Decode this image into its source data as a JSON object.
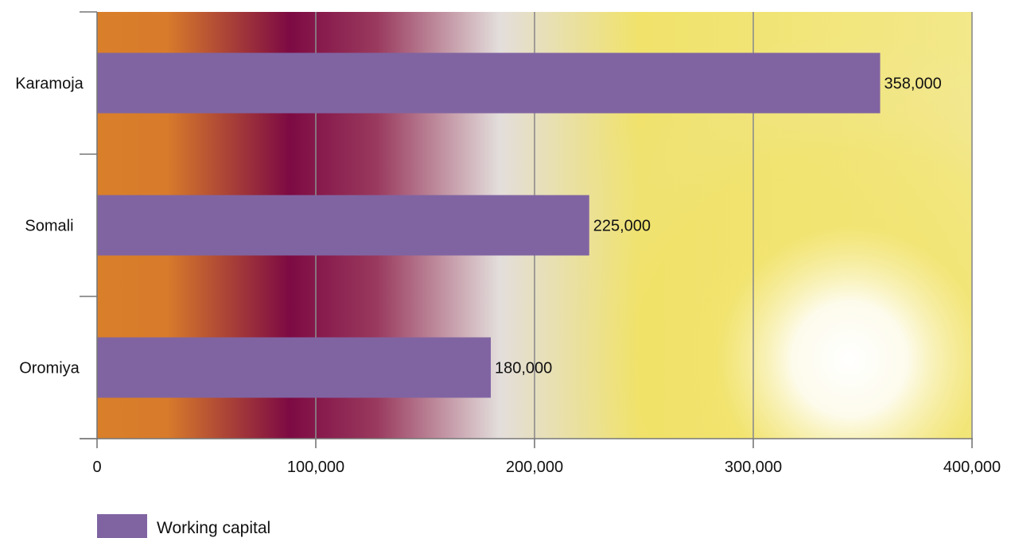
{
  "chart_data": {
    "type": "bar",
    "orientation": "horizontal",
    "categories": [
      "Karamoja",
      "Somali",
      "Oromiya"
    ],
    "series": [
      {
        "name": "Working capital",
        "values": [
          358000,
          225000,
          180000
        ]
      }
    ],
    "data_labels": [
      "358,000",
      "225,000",
      "180,000"
    ],
    "x_ticks": [
      0,
      100000,
      200000,
      300000,
      400000
    ],
    "x_tick_labels": [
      "0",
      "100,000",
      "200,000",
      "300,000",
      "400,000"
    ],
    "xlim": [
      0,
      400000
    ],
    "grid": true,
    "legend_position": "bottom-left",
    "title": "",
    "xlabel": "",
    "ylabel": ""
  },
  "colors": {
    "bar": "#8064a2",
    "gridline": "#8c8c8c",
    "axis": "#777777",
    "background_stops": [
      "#d97f2a",
      "#7d0a43",
      "#e6e4dc",
      "#f0e05e",
      "#ffffff"
    ]
  }
}
